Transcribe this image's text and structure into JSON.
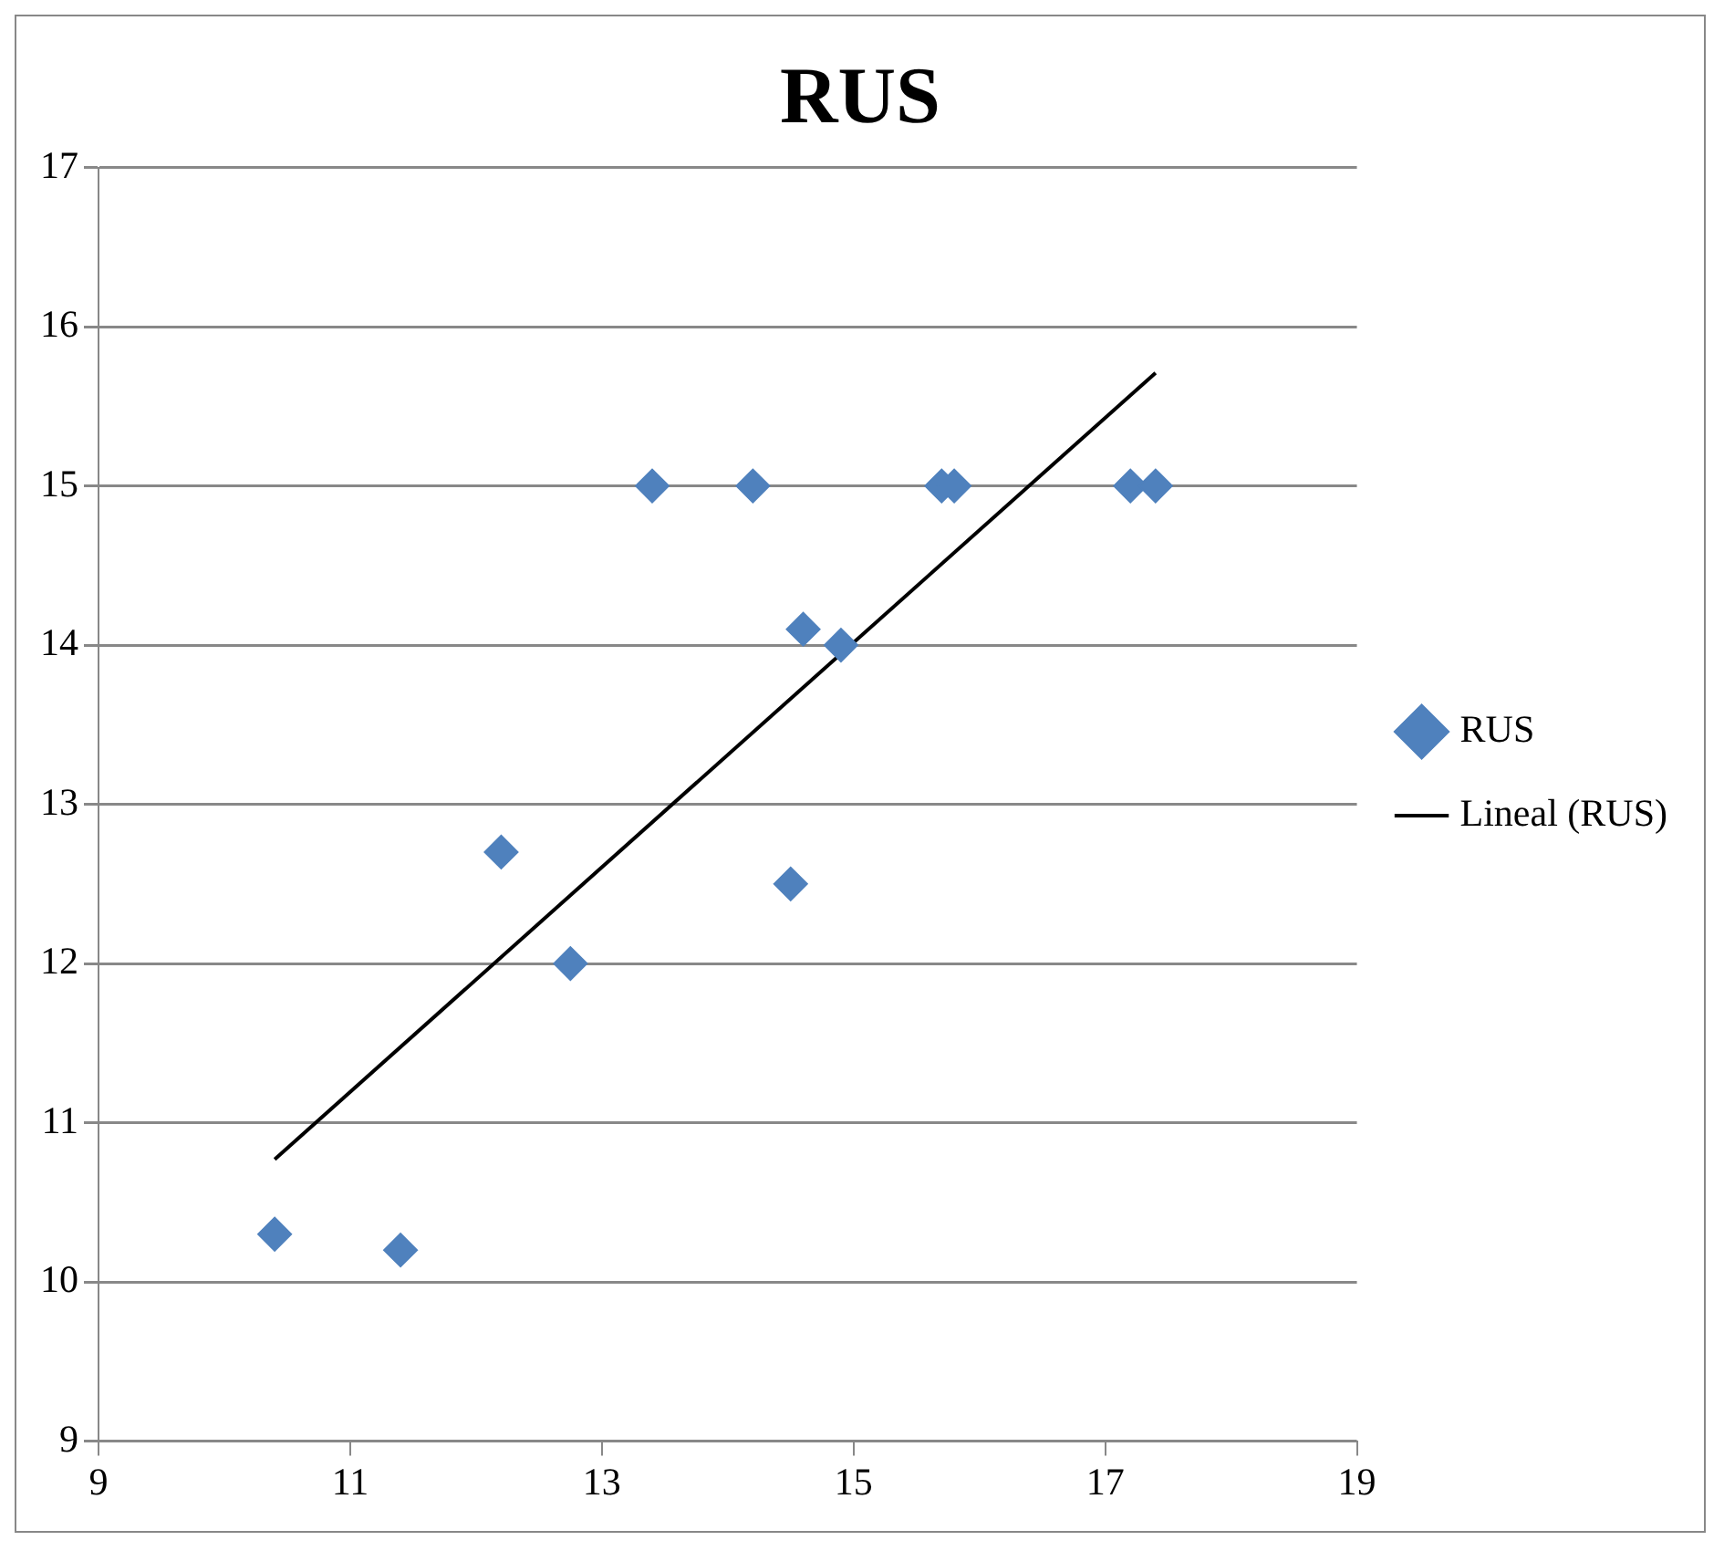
{
  "chart_data": {
    "type": "scatter",
    "title": "RUS",
    "xlim": [
      9,
      19
    ],
    "xticks": [
      9,
      11,
      13,
      15,
      17,
      19
    ],
    "ylim": [
      9,
      17
    ],
    "yticks": [
      9,
      10,
      11,
      12,
      13,
      14,
      15,
      16,
      17
    ],
    "grid": "y",
    "legend": "right",
    "series": [
      {
        "name": "RUS",
        "color": "#4f81bd",
        "marker": "diamond",
        "x": [
          10.4,
          11.4,
          12.2,
          12.75,
          13.4,
          14.2,
          14.6,
          14.5,
          14.9,
          15.7,
          15.8,
          17.2,
          17.4
        ],
        "values": [
          10.3,
          10.2,
          12.7,
          12.0,
          15,
          15,
          14.1,
          12.5,
          14.0,
          15,
          15,
          15,
          15
        ]
      },
      {
        "name": "Lineal (RUS)",
        "type": "line",
        "color": "#000000",
        "marker": "none",
        "x": [
          10.4,
          17.4
        ],
        "values": [
          10.77,
          15.71
        ]
      }
    ]
  }
}
